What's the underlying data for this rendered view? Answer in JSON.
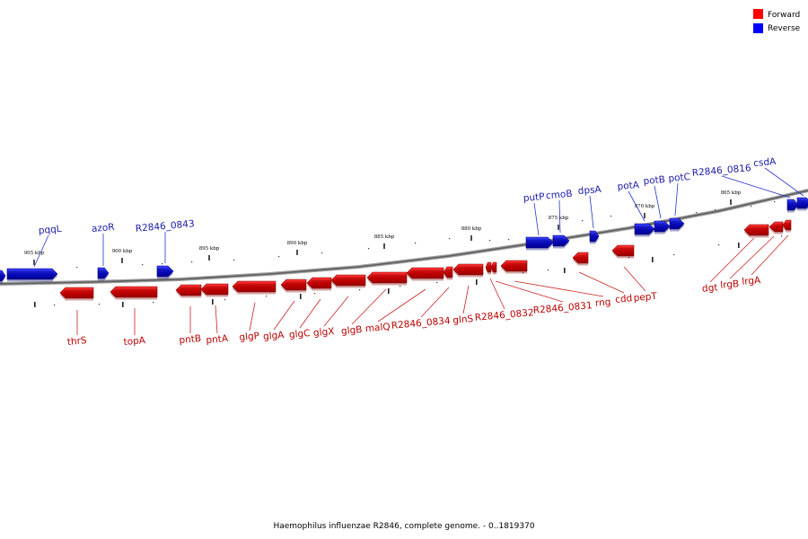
{
  "legend": {
    "items": [
      {
        "label": "Forward",
        "color": "#ff0000"
      },
      {
        "label": "Reverse",
        "color": "#0000ff"
      }
    ]
  },
  "footer": "Haemophilus influenzae R2846, complete genome. - 0..1819370",
  "colors": {
    "forward_fill": "#e8101a",
    "forward_label": "#bb0000",
    "reverse_fill": "#1a22ee",
    "reverse_label": "#1a1aaa",
    "backbone": "#7a7a7a"
  },
  "scale_labels": [
    "905 kbp",
    "900 kbp",
    "895 kbp",
    "890 kbp",
    "885 kbp",
    "880 kbp",
    "875 kbp",
    "870 kbp",
    "865 kbp"
  ],
  "forward_genes": [
    "thrS",
    "topA",
    "pntB",
    "pntA",
    "glgP",
    "glgA",
    "glgC",
    "glgX",
    "glgB",
    "malQ",
    "R2846_0834",
    "glnS",
    "R2846_0832",
    "R2846_0831",
    "rng",
    "cdd",
    "pepT",
    "dgt",
    "lrgB",
    "lrgA"
  ],
  "reverse_genes": [
    "pqqL",
    "azoR",
    "R2846_0843",
    "putP",
    "cmoB",
    "dpsA",
    "potA",
    "potB",
    "potC",
    "R2846_0816",
    "csdA"
  ]
}
